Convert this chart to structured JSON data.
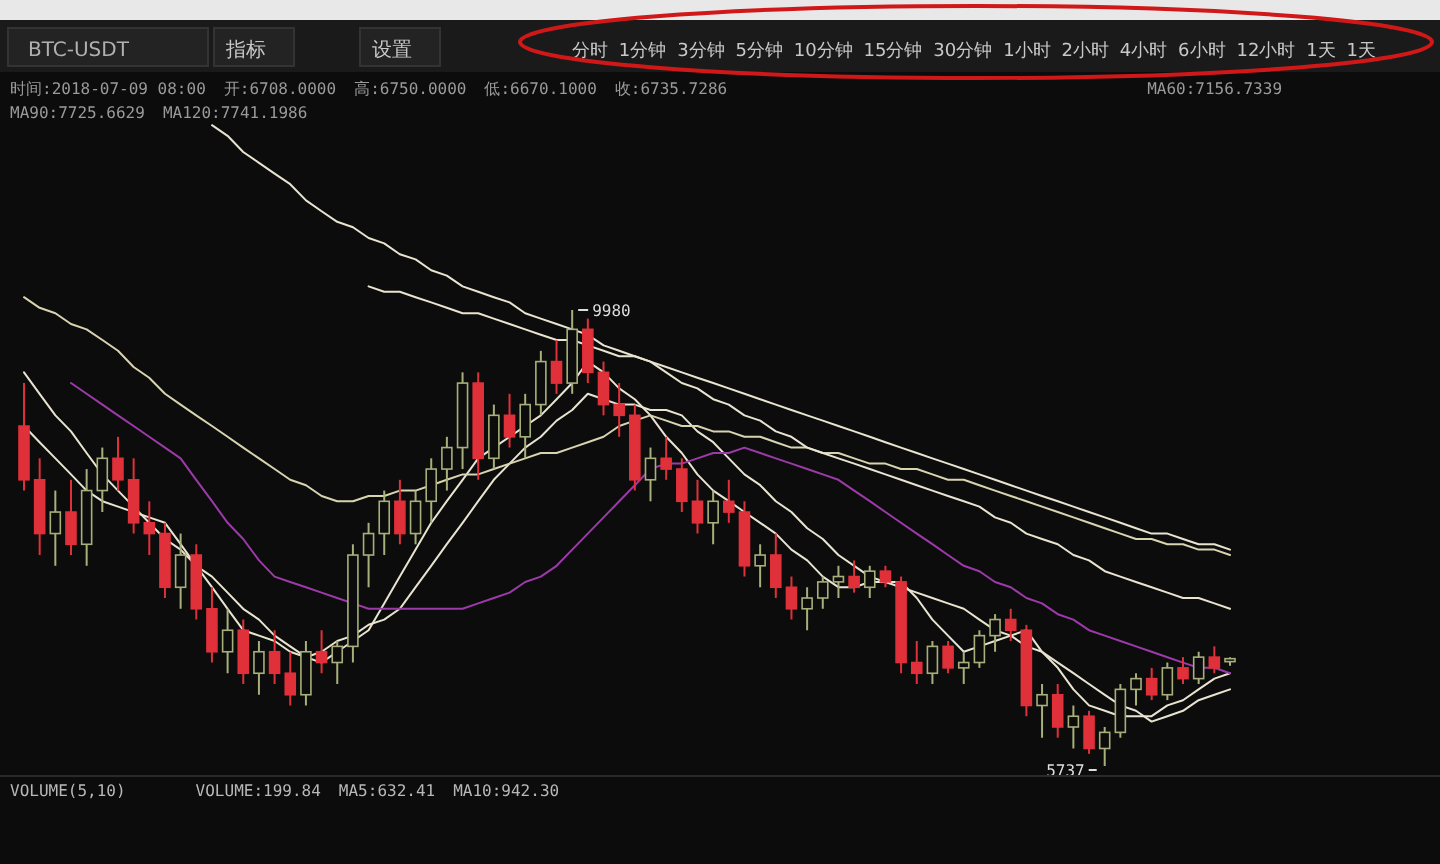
{
  "chart_data": {
    "type": "candlestick",
    "title": "BTC-USDT",
    "categories": [
      null,
      null,
      null,
      null,
      null,
      null,
      null,
      null,
      null,
      null,
      null,
      null,
      null,
      null,
      null,
      null,
      null,
      null,
      null,
      null,
      null,
      null,
      null,
      null,
      null,
      null,
      null,
      null,
      null,
      null,
      null,
      null,
      null,
      null,
      null,
      null,
      null,
      null,
      null,
      null,
      null,
      null,
      null,
      null,
      null,
      null,
      null,
      null,
      null,
      null,
      null,
      null,
      null,
      null,
      null,
      null,
      null,
      null,
      null,
      null,
      null,
      null,
      null,
      null,
      null,
      null,
      null,
      null,
      null,
      null,
      null,
      null,
      null,
      null,
      null,
      null,
      null,
      null
    ],
    "ohlc": [
      [
        8900,
        9300,
        8300,
        8400
      ],
      [
        8400,
        8600,
        7700,
        7900
      ],
      [
        7900,
        8300,
        7600,
        8100
      ],
      [
        8100,
        8400,
        7700,
        7800
      ],
      [
        7800,
        8500,
        7600,
        8300
      ],
      [
        8300,
        8700,
        8100,
        8600
      ],
      [
        8600,
        8800,
        8300,
        8400
      ],
      [
        8400,
        8600,
        7900,
        8000
      ],
      [
        8000,
        8200,
        7700,
        7900
      ],
      [
        7900,
        8000,
        7300,
        7400
      ],
      [
        7400,
        7900,
        7200,
        7700
      ],
      [
        7700,
        7800,
        7100,
        7200
      ],
      [
        7200,
        7400,
        6700,
        6800
      ],
      [
        6800,
        7200,
        6600,
        7000
      ],
      [
        7000,
        7100,
        6500,
        6600
      ],
      [
        6600,
        6900,
        6400,
        6800
      ],
      [
        6800,
        7000,
        6500,
        6600
      ],
      [
        6600,
        6800,
        6300,
        6400
      ],
      [
        6400,
        6900,
        6300,
        6800
      ],
      [
        6800,
        7000,
        6600,
        6700
      ],
      [
        6700,
        6900,
        6500,
        6850
      ],
      [
        6850,
        7800,
        6700,
        7700
      ],
      [
        7700,
        8000,
        7400,
        7900
      ],
      [
        7900,
        8300,
        7700,
        8200
      ],
      [
        8200,
        8400,
        7800,
        7900
      ],
      [
        7900,
        8300,
        7800,
        8200
      ],
      [
        8200,
        8600,
        8000,
        8500
      ],
      [
        8500,
        8800,
        8300,
        8700
      ],
      [
        8700,
        9400,
        8500,
        9300
      ],
      [
        9300,
        9400,
        8400,
        8600
      ],
      [
        8600,
        9100,
        8500,
        9000
      ],
      [
        9000,
        9200,
        8700,
        8800
      ],
      [
        8800,
        9200,
        8600,
        9100
      ],
      [
        9100,
        9600,
        9000,
        9500
      ],
      [
        9500,
        9700,
        9200,
        9300
      ],
      [
        9300,
        9980,
        9200,
        9800
      ],
      [
        9800,
        9900,
        9300,
        9400
      ],
      [
        9400,
        9500,
        9000,
        9100
      ],
      [
        9100,
        9300,
        8800,
        9000
      ],
      [
        9000,
        9100,
        8300,
        8400
      ],
      [
        8400,
        8700,
        8200,
        8600
      ],
      [
        8600,
        8800,
        8400,
        8500
      ],
      [
        8500,
        8600,
        8100,
        8200
      ],
      [
        8200,
        8400,
        7900,
        8000
      ],
      [
        8000,
        8300,
        7800,
        8200
      ],
      [
        8200,
        8400,
        8000,
        8100
      ],
      [
        8100,
        8200,
        7500,
        7600
      ],
      [
        7600,
        7800,
        7400,
        7700
      ],
      [
        7700,
        7900,
        7300,
        7400
      ],
      [
        7400,
        7500,
        7100,
        7200
      ],
      [
        7200,
        7400,
        7000,
        7300
      ],
      [
        7300,
        7500,
        7200,
        7450
      ],
      [
        7450,
        7600,
        7300,
        7500
      ],
      [
        7500,
        7650,
        7350,
        7400
      ],
      [
        7400,
        7600,
        7300,
        7550
      ],
      [
        7550,
        7600,
        7400,
        7450
      ],
      [
        7450,
        7500,
        6600,
        6700
      ],
      [
        6700,
        6900,
        6500,
        6600
      ],
      [
        6600,
        6900,
        6500,
        6850
      ],
      [
        6850,
        6900,
        6600,
        6650
      ],
      [
        6650,
        6800,
        6500,
        6700
      ],
      [
        6700,
        7000,
        6650,
        6950
      ],
      [
        6950,
        7150,
        6800,
        7100
      ],
      [
        7100,
        7200,
        6900,
        7000
      ],
      [
        7000,
        7050,
        6200,
        6300
      ],
      [
        6300,
        6500,
        6000,
        6400
      ],
      [
        6400,
        6500,
        6000,
        6100
      ],
      [
        6100,
        6300,
        5900,
        6200
      ],
      [
        6200,
        6250,
        5850,
        5900
      ],
      [
        5900,
        6100,
        5737,
        6050
      ],
      [
        6050,
        6500,
        6000,
        6450
      ],
      [
        6450,
        6600,
        6300,
        6550
      ],
      [
        6550,
        6650,
        6350,
        6400
      ],
      [
        6400,
        6700,
        6350,
        6650
      ],
      [
        6650,
        6750,
        6500,
        6550
      ],
      [
        6550,
        6800,
        6500,
        6750
      ],
      [
        6750,
        6850,
        6600,
        6650
      ],
      [
        6708,
        6750,
        6670.1,
        6735.7286
      ]
    ],
    "series": [
      {
        "type": "line",
        "color": "#e8e4d0",
        "values": [
          8900,
          8750,
          8600,
          8450,
          8300,
          8200,
          8150,
          8100,
          8050,
          8000,
          7800,
          7600,
          7400,
          7200,
          7000,
          6950,
          6900,
          6800,
          6750,
          6700,
          6800,
          6900,
          7000,
          7250,
          7500,
          7750,
          8000,
          8200,
          8400,
          8600,
          8700,
          8800,
          8900,
          9000,
          9150,
          9300,
          9500,
          9400,
          9250,
          9150,
          9000,
          8800,
          8650,
          8450,
          8300,
          8200,
          8100,
          8000,
          7900,
          7750,
          7650,
          7500,
          7400,
          7400,
          7450,
          7450,
          7450,
          7300,
          7100,
          6950,
          6800,
          6850,
          6900,
          6950,
          7000,
          6800,
          6650,
          6450,
          6300,
          6250,
          6200,
          6200,
          6200,
          6300,
          6350,
          6450,
          6550,
          6600
        ]
      },
      {
        "type": "line",
        "color": "#e8e4d0",
        "values": [
          9400,
          9200,
          9000,
          8850,
          8650,
          8450,
          8300,
          8150,
          8000,
          7850,
          7750,
          7600,
          7500,
          7350,
          7200,
          7100,
          6950,
          6850,
          6750,
          6800,
          6900,
          6950,
          7050,
          7100,
          7200,
          7400,
          7600,
          7800,
          8000,
          8200,
          8400,
          8550,
          8700,
          8800,
          8950,
          9050,
          9200,
          9150,
          9100,
          9100,
          9050,
          9050,
          9000,
          8850,
          8750,
          8600,
          8450,
          8350,
          8200,
          8100,
          7950,
          7850,
          7700,
          7600,
          7500,
          7450,
          7400,
          7350,
          7300,
          7250,
          7200,
          7100,
          7000,
          6950,
          6850,
          6800,
          6700,
          6600,
          6500,
          6400,
          6300,
          6250,
          6150,
          6200,
          6250,
          6350,
          6400,
          6450
        ]
      },
      {
        "type": "line",
        "color": "#9b3aa8",
        "values": [
          null,
          null,
          null,
          9300,
          9200,
          9100,
          9000,
          8900,
          8800,
          8700,
          8600,
          8400,
          8200,
          8000,
          7850,
          7650,
          7500,
          7450,
          7400,
          7350,
          7300,
          7250,
          7200,
          7200,
          7200,
          7200,
          7200,
          7200,
          7200,
          7250,
          7300,
          7350,
          7450,
          7500,
          7600,
          7750,
          7900,
          8050,
          8200,
          8350,
          8500,
          8550,
          8550,
          8600,
          8650,
          8650,
          8700,
          8650,
          8600,
          8550,
          8500,
          8450,
          8400,
          8300,
          8200,
          8100,
          8000,
          7900,
          7800,
          7700,
          7600,
          7550,
          7450,
          7400,
          7300,
          7250,
          7150,
          7100,
          7000,
          6950,
          6900,
          6850,
          6800,
          6750,
          6700,
          6650,
          6650,
          6600
        ]
      },
      {
        "type": "line",
        "color": "#d8d4b0",
        "values": [
          10100,
          10000,
          9950,
          9850,
          9800,
          9700,
          9600,
          9450,
          9350,
          9200,
          9100,
          9000,
          8900,
          8800,
          8700,
          8600,
          8500,
          8400,
          8350,
          8250,
          8200,
          8200,
          8250,
          8250,
          8300,
          8300,
          8350,
          8400,
          8450,
          8450,
          8500,
          8550,
          8600,
          8650,
          8650,
          8700,
          8750,
          8800,
          8900,
          8950,
          9000,
          8950,
          8900,
          8900,
          8850,
          8850,
          8800,
          8800,
          8750,
          8700,
          8700,
          8650,
          8650,
          8600,
          8550,
          8550,
          8500,
          8500,
          8450,
          8400,
          8400,
          8350,
          8300,
          8250,
          8200,
          8150,
          8100,
          8050,
          8000,
          7950,
          7900,
          7850,
          7850,
          7800,
          7800,
          7750,
          7750,
          7700
        ]
      },
      {
        "type": "line",
        "color": "#e8e4d0",
        "values": [
          null,
          null,
          null,
          null,
          null,
          null,
          null,
          null,
          null,
          null,
          null,
          null,
          null,
          null,
          null,
          null,
          null,
          null,
          null,
          null,
          null,
          null,
          10200,
          10150,
          10150,
          10100,
          10050,
          10000,
          9950,
          9950,
          9900,
          9850,
          9800,
          9750,
          9700,
          9700,
          9650,
          9600,
          9550,
          9550,
          9500,
          9400,
          9300,
          9250,
          9150,
          9100,
          9000,
          8950,
          8850,
          8800,
          8700,
          8650,
          8600,
          8550,
          8500,
          8450,
          8400,
          8350,
          8300,
          8250,
          8200,
          8150,
          8050,
          8000,
          7900,
          7850,
          7800,
          7700,
          7650,
          7550,
          7500,
          7450,
          7400,
          7350,
          7300,
          7300,
          7250,
          7200
        ]
      },
      {
        "type": "line",
        "color": "#e8e4d0",
        "values": [
          null,
          null,
          null,
          null,
          null,
          null,
          null,
          null,
          null,
          null,
          null,
          null,
          11700,
          11600,
          11450,
          11350,
          11250,
          11150,
          11000,
          10900,
          10800,
          10750,
          10650,
          10600,
          10500,
          10450,
          10350,
          10300,
          10200,
          10150,
          10100,
          10050,
          9950,
          9900,
          9850,
          9800,
          9750,
          9650,
          9600,
          9550,
          9500,
          9450,
          9400,
          9350,
          9300,
          9250,
          9200,
          9150,
          9100,
          9050,
          9000,
          8950,
          8900,
          8850,
          8800,
          8750,
          8700,
          8650,
          8600,
          8550,
          8500,
          8450,
          8400,
          8350,
          8300,
          8250,
          8200,
          8150,
          8100,
          8050,
          8000,
          7950,
          7900,
          7900,
          7850,
          7800,
          7800,
          7750
        ]
      }
    ],
    "annotations": [
      "指标",
      "设置",
      "分时",
      "1分钟",
      "3分钟",
      "5分钟",
      "10分钟",
      "15分钟",
      "30分钟",
      "1小时",
      "2小时",
      "4小时",
      "6小时",
      "12小时",
      "1天",
      "1天",
      "时间:2018-07-09 08:00",
      "开:6708.0000",
      "高:6750.0000",
      "低:6670.1000",
      "收:6735.7286",
      "MA60:7156.7339",
      "MA90:7725.6629",
      "MA120:7741.1986",
      "VOLUME(5,10)",
      "VOLUME:199.84",
      "MA5:632.41",
      "MA10:942.30",
      "9980",
      "5737"
    ]
  }
}
